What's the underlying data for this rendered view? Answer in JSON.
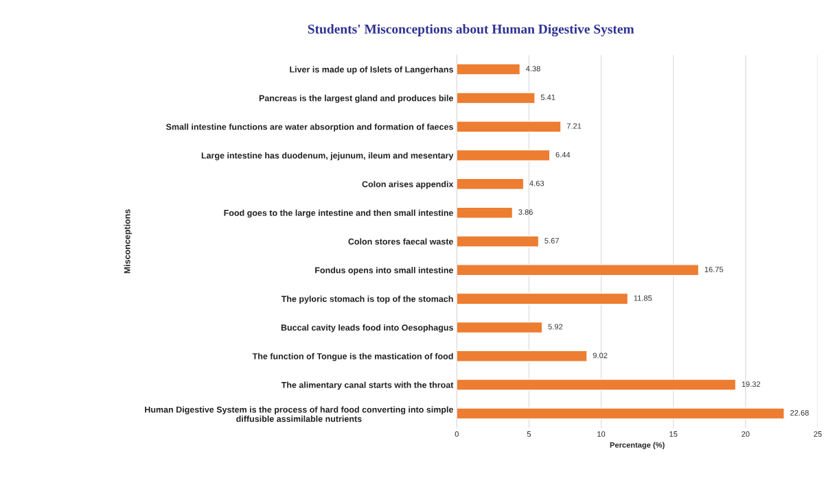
{
  "chart_data": {
    "type": "bar",
    "orientation": "horizontal",
    "title": "Students' Misconceptions about Human Digestive System",
    "xlabel": "Percentage (%)",
    "ylabel": "Misconceptions",
    "categories": [
      "Liver is made up of Islets of Langerhans",
      "Pancreas is the largest gland and produces bile",
      "Small intestine functions are water absorption and formation of faeces",
      "Large intestine has duodenum, jejunum, ileum and mesentary",
      "Colon arises appendix",
      "Food goes to the large intestine and then small intestine",
      "Colon stores faecal waste",
      "Fondus opens into small intestine",
      "The pyloric stomach is top of the stomach",
      "Buccal cavity leads food into Oesophagus",
      "The function of Tongue is the mastication of food",
      "The alimentary canal starts with the throat",
      "Human Digestive System is the process of hard food converting into simple\ndiffusible assimilable nutrients"
    ],
    "values": [
      4.38,
      5.41,
      7.21,
      6.44,
      4.63,
      3.86,
      5.67,
      16.75,
      11.85,
      5.92,
      9.02,
      19.32,
      22.68
    ],
    "color": "#ed7d31",
    "data_labels": true,
    "xlim": [
      0,
      25
    ],
    "xticks": [
      0,
      5,
      10,
      15,
      20,
      25
    ],
    "grid": "x",
    "legend": false
  }
}
